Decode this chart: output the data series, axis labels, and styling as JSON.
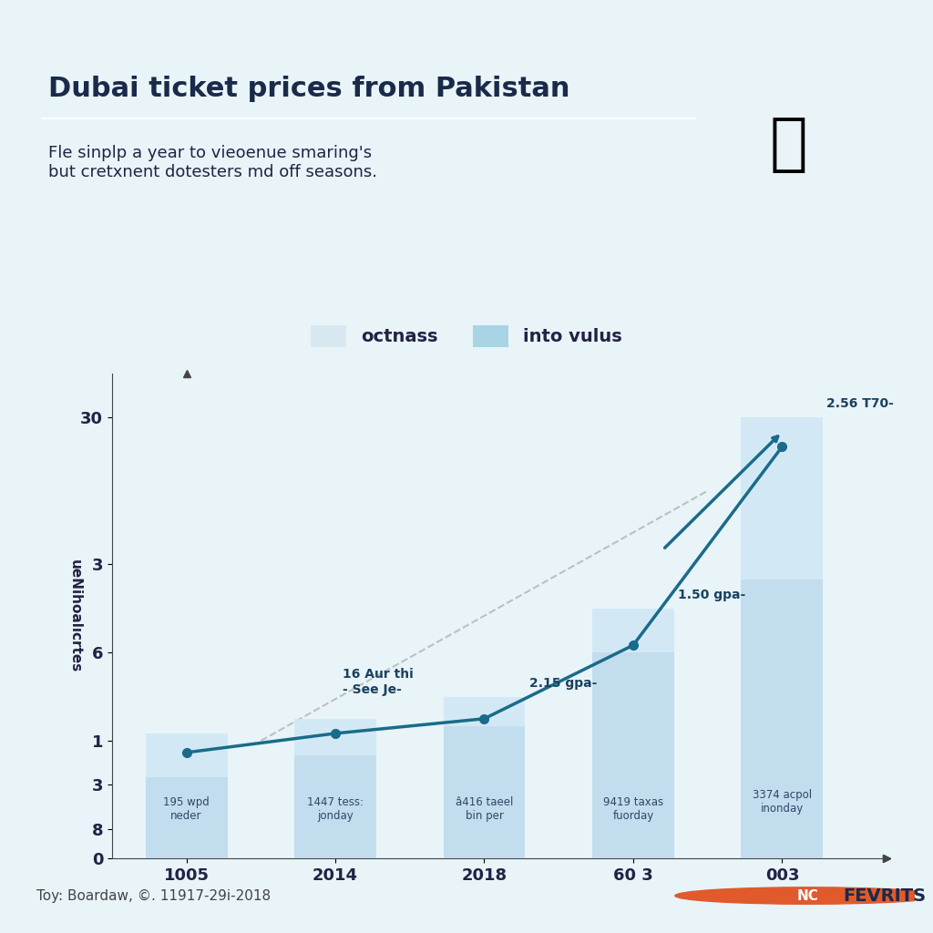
{
  "title": "Dubai ticket prices from Pakistan",
  "subtitle": "Fle sinplp a year to vieoenue smaring's\nbut cretxnent dotesters md off seasons.",
  "legend_labels": [
    "octnass",
    "into vulus"
  ],
  "legend_colors": [
    "#d8e8f0",
    "#a8d4e6"
  ],
  "x_labels": [
    "1005",
    "2014",
    "2018",
    "60 3",
    "003"
  ],
  "bar_heights_back": [
    8.5,
    9.5,
    11.0,
    17.0,
    30.0
  ],
  "bar_heights_front": [
    5.5,
    7.0,
    9.0,
    14.0,
    19.0
  ],
  "bar_color_back": "#d0e8f5",
  "bar_color_front": "#c0dced",
  "line_y": [
    7.2,
    8.5,
    9.5,
    14.5,
    28.0
  ],
  "line_color": "#1a6b8a",
  "y_ticks": [
    0,
    3,
    6,
    8,
    1,
    3,
    6,
    30
  ],
  "ylabel": "ueNihoalıcrtes",
  "bar_labels": [
    "195 wpd\nneder",
    "1447 tess:\njonday",
    "â416 taeel\nbin per",
    "9419 taxas\nfuorday",
    "3374 acpol\ninonday"
  ],
  "bar_top_labels": [
    "",
    "",
    "2.15 gpa-",
    "1.50 gpa-",
    "2.56 T70-"
  ],
  "line_annotation": "16 Aur thi\n- See Je-",
  "background_color": "#e8f4f8",
  "header_bg_color": "#d0e8f5",
  "source_text": "Toy: Boardaw, ©. 11917-29i-2018",
  "brand_text": "FEVRITS",
  "brand_circle_color": "#e05a2b",
  "arrow_annotation": "2.56 T70-",
  "y_axis_labels": [
    "0",
    "8",
    "3",
    "1",
    "6",
    "3",
    "30"
  ]
}
